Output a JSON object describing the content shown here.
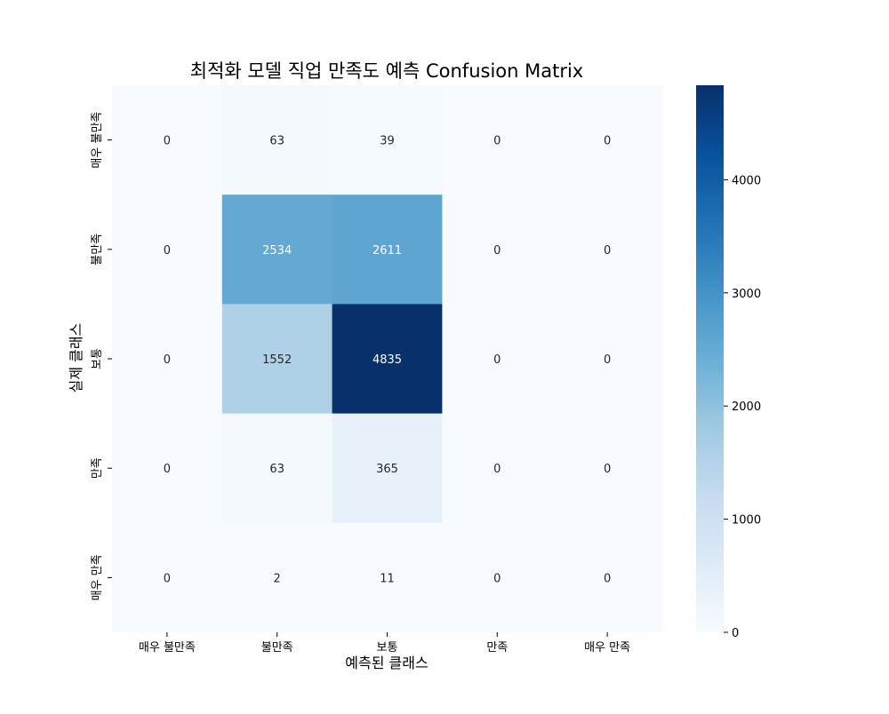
{
  "chart_data": {
    "type": "heatmap",
    "title": "최적화 모델 직업 만족도 예측 Confusion Matrix",
    "xlabel": "예측된 클래스",
    "ylabel": "실제 클래스",
    "x_categories": [
      "매우 불만족",
      "불만족",
      "보통",
      "만족",
      "매우 만족"
    ],
    "y_categories": [
      "매우 불만족",
      "불만족",
      "보통",
      "만족",
      "매우 만족"
    ],
    "values": [
      [
        0,
        63,
        39,
        0,
        0
      ],
      [
        0,
        2534,
        2611,
        0,
        0
      ],
      [
        0,
        1552,
        4835,
        0,
        0
      ],
      [
        0,
        63,
        365,
        0,
        0
      ],
      [
        0,
        2,
        11,
        0,
        0
      ]
    ],
    "colormap": "Blues",
    "colormap_stops": [
      "#f7fbff",
      "#deebf7",
      "#c6dbef",
      "#9ecae1",
      "#6baed6",
      "#4292c6",
      "#2171b5",
      "#08519c",
      "#08306b"
    ],
    "vmin": 0,
    "vmax": 4835,
    "colorbar_ticks": [
      0,
      1000,
      2000,
      3000,
      4000
    ],
    "annotation_dark_text_color": "#262626",
    "annotation_light_text_color": "#ffffff"
  }
}
